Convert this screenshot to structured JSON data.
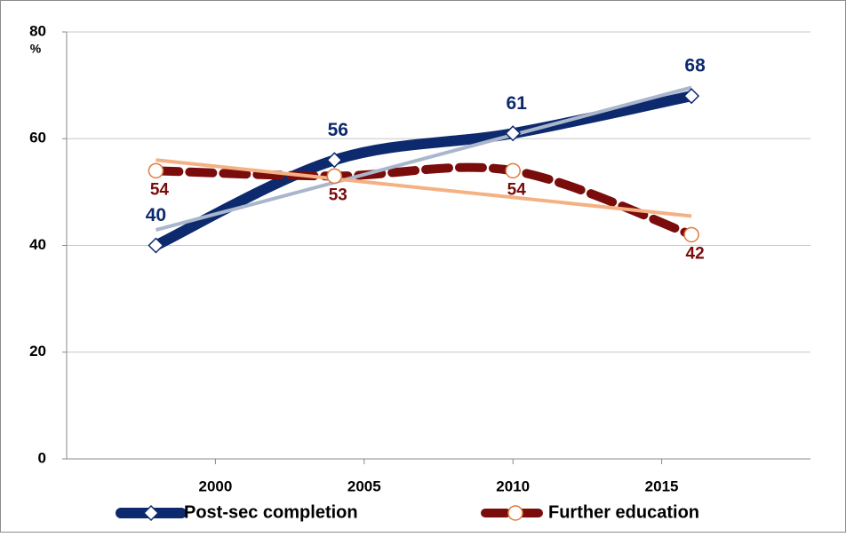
{
  "chart_data": {
    "type": "line",
    "y_unit": "%",
    "x": [
      1998,
      2004,
      2010,
      2016
    ],
    "series": [
      {
        "name": "Post-sec completion",
        "color": "#0d2a6e",
        "trend_color": "#a9b6cc",
        "values": [
          40,
          56,
          61,
          68
        ]
      },
      {
        "name": "Further education",
        "color": "#7a0c0c",
        "trend_color": "#f4b183",
        "values": [
          54,
          53,
          54,
          42
        ]
      }
    ],
    "xlim": [
      1995,
      2020
    ],
    "xticks": [
      2000,
      2005,
      2010,
      2015
    ],
    "ylim": [
      0,
      80
    ],
    "yticks": [
      0,
      20,
      40,
      60,
      80
    ],
    "grid": true,
    "trendline": true,
    "legend": "bottom"
  }
}
